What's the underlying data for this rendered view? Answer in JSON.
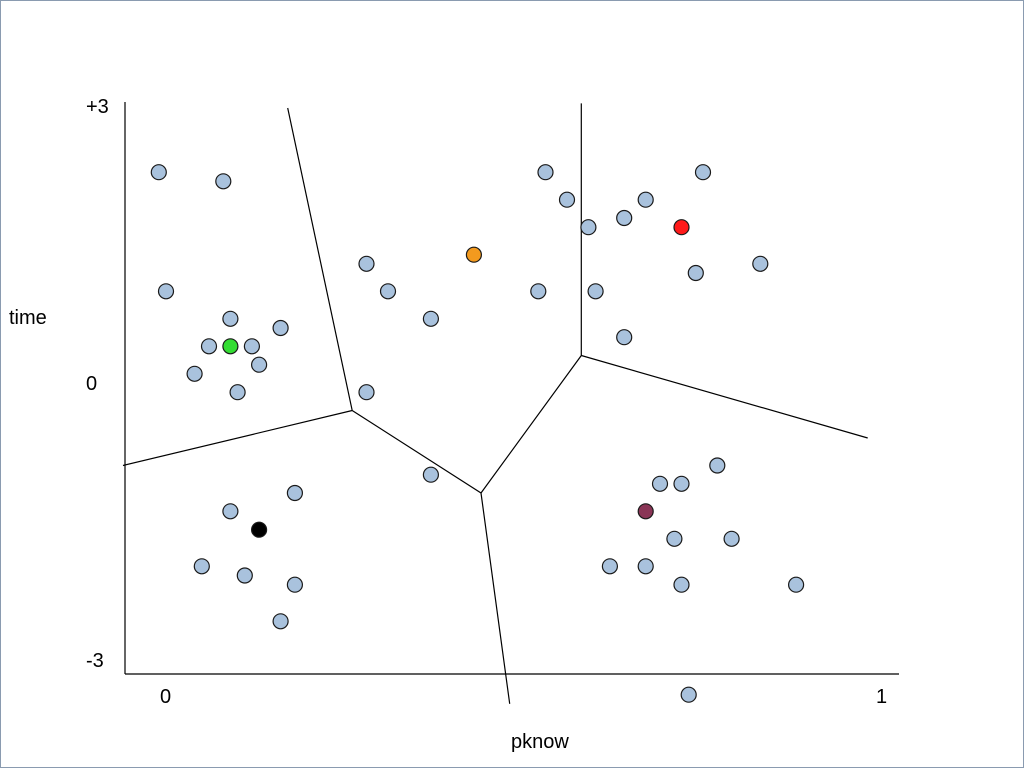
{
  "chart_data": {
    "type": "scatter",
    "xlabel": "pknow",
    "ylabel": "time",
    "xlim": [
      0,
      1
    ],
    "ylim": [
      -3,
      3
    ],
    "x_ticks": [
      {
        "value": 0,
        "label": "0"
      },
      {
        "value": 1,
        "label": "1"
      }
    ],
    "y_ticks": [
      {
        "value": 3,
        "label": "+3"
      },
      {
        "value": 0,
        "label": "0"
      },
      {
        "value": -3,
        "label": "-3"
      }
    ],
    "colors": {
      "point": "#a9c2dd",
      "green": "#33dd33",
      "orange": "#f39a1e",
      "red": "#ff1a1a",
      "black": "#000000",
      "maroon": "#8a3556"
    },
    "points": [
      [
        -0.01,
        2.3
      ],
      [
        0.08,
        2.2
      ],
      [
        0.0,
        1.0
      ],
      [
        0.09,
        0.7
      ],
      [
        0.06,
        0.4
      ],
      [
        0.12,
        0.4
      ],
      [
        0.16,
        0.6
      ],
      [
        0.04,
        0.1
      ],
      [
        0.13,
        0.2
      ],
      [
        0.1,
        -0.1
      ],
      [
        0.28,
        1.3
      ],
      [
        0.31,
        1.0
      ],
      [
        0.37,
        0.7
      ],
      [
        0.28,
        -0.1
      ],
      [
        0.53,
        2.3
      ],
      [
        0.56,
        2.0
      ],
      [
        0.52,
        1.0
      ],
      [
        0.59,
        1.7
      ],
      [
        0.6,
        1.0
      ],
      [
        0.64,
        1.8
      ],
      [
        0.67,
        2.0
      ],
      [
        0.64,
        0.5
      ],
      [
        0.74,
        1.2
      ],
      [
        0.75,
        2.3
      ],
      [
        0.83,
        1.3
      ],
      [
        0.37,
        -1.0
      ],
      [
        0.09,
        -1.4
      ],
      [
        0.18,
        -1.2
      ],
      [
        0.05,
        -2.0
      ],
      [
        0.11,
        -2.1
      ],
      [
        0.18,
        -2.2
      ],
      [
        0.16,
        -2.6
      ],
      [
        0.69,
        -1.1
      ],
      [
        0.72,
        -1.1
      ],
      [
        0.77,
        -0.9
      ],
      [
        0.71,
        -1.7
      ],
      [
        0.79,
        -1.7
      ],
      [
        0.62,
        -2.0
      ],
      [
        0.67,
        -2.0
      ],
      [
        0.72,
        -2.2
      ],
      [
        0.88,
        -2.2
      ],
      [
        0.73,
        -3.4
      ]
    ],
    "centroids": [
      {
        "name": "green",
        "x": 0.09,
        "y": 0.4
      },
      {
        "name": "orange",
        "x": 0.43,
        "y": 1.4
      },
      {
        "name": "red",
        "x": 0.72,
        "y": 1.7
      },
      {
        "name": "black",
        "x": 0.13,
        "y": -1.6
      },
      {
        "name": "maroon",
        "x": 0.67,
        "y": -1.4
      }
    ],
    "boundaries": [
      [
        [
          0.17,
          3.0
        ],
        [
          0.26,
          -0.3
        ],
        [
          0.44,
          -1.2
        ],
        [
          0.48,
          -3.5
        ]
      ],
      [
        [
          -0.06,
          -0.9
        ],
        [
          0.26,
          -0.3
        ]
      ],
      [
        [
          0.44,
          -1.2
        ],
        [
          0.58,
          0.3
        ],
        [
          0.58,
          3.05
        ]
      ],
      [
        [
          0.58,
          0.3
        ],
        [
          0.98,
          -0.6
        ]
      ]
    ]
  }
}
